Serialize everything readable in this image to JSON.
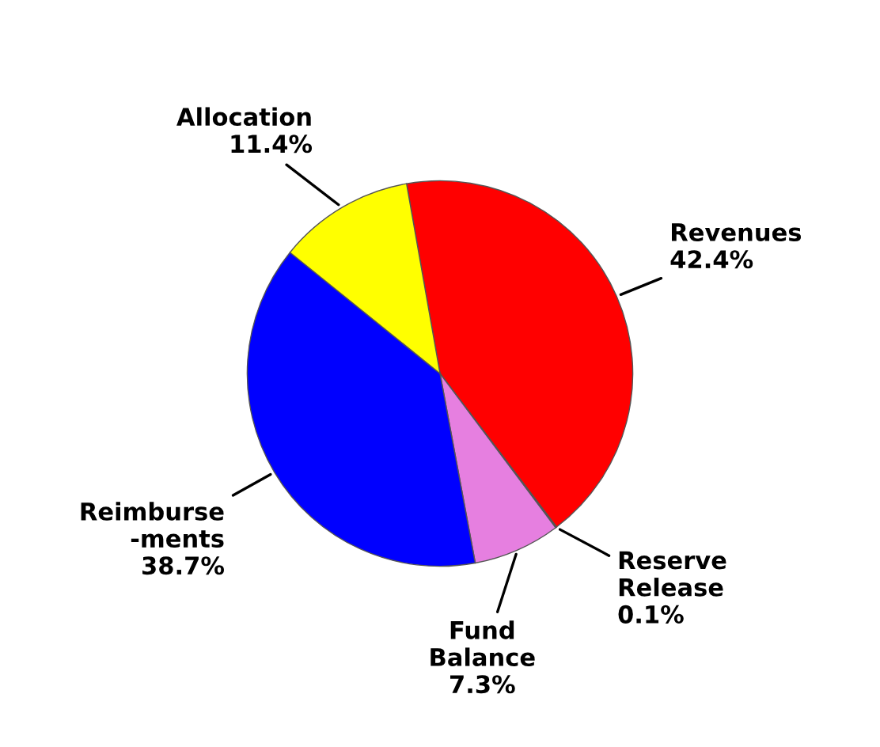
{
  "chart_data": {
    "type": "pie",
    "categories": [
      "Revenues",
      "Reserve\nRelease",
      "Fund\nBalance",
      "Reimburse\n-ments",
      "Allocation"
    ],
    "values": [
      42.4,
      0.1,
      7.3,
      38.7,
      11.4
    ],
    "value_labels": [
      "42.4%",
      "0.1%",
      "7.3%",
      "38.7%",
      "11.4%"
    ],
    "colors": [
      "#ff0000",
      "#800000",
      "#e67fe0",
      "#0000ff",
      "#ffff00"
    ],
    "legend": false
  }
}
